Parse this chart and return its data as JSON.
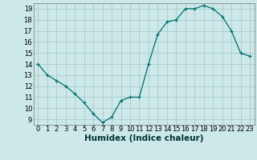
{
  "x": [
    0,
    1,
    2,
    3,
    4,
    5,
    6,
    7,
    8,
    9,
    10,
    11,
    12,
    13,
    14,
    15,
    16,
    17,
    18,
    19,
    20,
    21,
    22,
    23
  ],
  "y": [
    14.0,
    13.0,
    12.5,
    12.0,
    11.3,
    10.5,
    9.5,
    8.7,
    9.2,
    10.7,
    11.0,
    11.0,
    14.0,
    16.7,
    17.8,
    18.0,
    19.0,
    19.0,
    19.3,
    19.0,
    18.3,
    17.0,
    15.0,
    14.7
  ],
  "xlabel": "Humidex (Indice chaleur)",
  "line_color": "#007070",
  "marker": "+",
  "bg_color": "#cce8e8",
  "grid_color": "#aacccc",
  "ylim_min": 8.5,
  "ylim_max": 19.5,
  "xlim_min": -0.5,
  "xlim_max": 23.5,
  "yticks": [
    9,
    10,
    11,
    12,
    13,
    14,
    15,
    16,
    17,
    18,
    19
  ],
  "xticks": [
    0,
    1,
    2,
    3,
    4,
    5,
    6,
    7,
    8,
    9,
    10,
    11,
    12,
    13,
    14,
    15,
    16,
    17,
    18,
    19,
    20,
    21,
    22,
    23
  ],
  "tick_fontsize": 6.0,
  "xlabel_fontsize": 7.5,
  "marker_size": 3.5,
  "line_width": 0.9
}
